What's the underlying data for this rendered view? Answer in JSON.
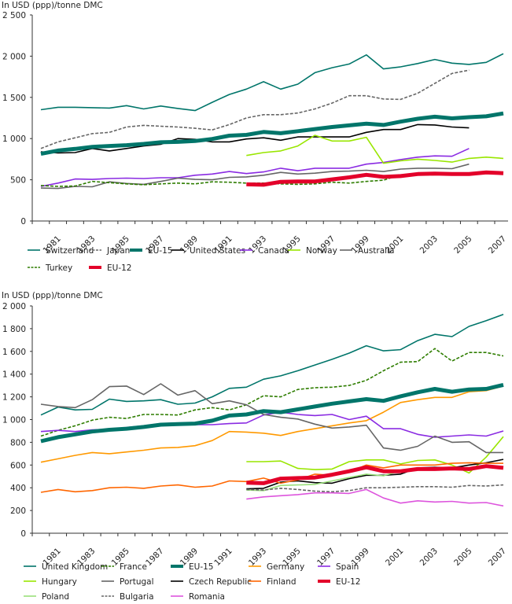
{
  "chart_data": [
    {
      "type": "line",
      "title": "",
      "ylabel": "In USD (ppp)/tonne DMC",
      "xlabel": "",
      "ylim": [
        0,
        2500
      ],
      "yticks": [
        0,
        500,
        1000,
        1500,
        2000,
        2500
      ],
      "ytick_labels": [
        "0",
        "500",
        "1 000",
        "1 500",
        "2 000",
        "2 500"
      ],
      "x": [
        1980,
        1981,
        1982,
        1983,
        1984,
        1985,
        1986,
        1987,
        1988,
        1989,
        1990,
        1991,
        1992,
        1993,
        1994,
        1995,
        1996,
        1997,
        1998,
        1999,
        2000,
        2001,
        2002,
        2003,
        2004,
        2005,
        2006,
        2007
      ],
      "xtick_labels": [
        "1981",
        "1983",
        "1985",
        "1987",
        "1989",
        "1991",
        "1993",
        "1995",
        "1997",
        "1999",
        "2001",
        "2003",
        "2005",
        "2007"
      ],
      "legend_position": "bottom",
      "series": [
        {
          "name": "Switzerland",
          "color": "#00756a",
          "style": "solid",
          "weight": "normal",
          "values": [
            1350,
            1380,
            1380,
            1375,
            1370,
            1400,
            1360,
            1395,
            1365,
            1340,
            1440,
            1535,
            1600,
            1690,
            1600,
            1660,
            1800,
            1860,
            1905,
            2015,
            1845,
            1870,
            1910,
            1960,
            1915,
            1900,
            1925,
            2030
          ]
        },
        {
          "name": "Japan",
          "color": "#666666",
          "style": "dashed",
          "weight": "normal",
          "values": [
            880,
            960,
            1010,
            1060,
            1075,
            1140,
            1160,
            1150,
            1140,
            1125,
            1105,
            1170,
            1250,
            1290,
            1290,
            1310,
            1360,
            1430,
            1520,
            1520,
            1480,
            1475,
            1550,
            1670,
            1790,
            1830,
            null,
            null
          ]
        },
        {
          "name": "EU-15",
          "color": "#00756a",
          "style": "solid",
          "weight": "thick",
          "values": [
            815,
            855,
            875,
            900,
            910,
            920,
            935,
            955,
            960,
            970,
            995,
            1035,
            1045,
            1080,
            1065,
            1090,
            1115,
            1140,
            1160,
            1180,
            1165,
            1205,
            1240,
            1265,
            1245,
            1260,
            1270,
            1305
          ]
        },
        {
          "name": "United States",
          "color": "#000000",
          "style": "solid",
          "weight": "normal",
          "values": [
            840,
            825,
            830,
            880,
            850,
            880,
            910,
            930,
            1000,
            990,
            960,
            960,
            995,
            1010,
            980,
            1020,
            1020,
            1020,
            1020,
            1075,
            1110,
            1110,
            1170,
            1165,
            1140,
            1130,
            null,
            null
          ]
        },
        {
          "name": "Canada",
          "color": "#8a2be2",
          "style": "solid",
          "weight": "normal",
          "values": [
            420,
            460,
            510,
            505,
            515,
            520,
            515,
            525,
            525,
            555,
            570,
            600,
            575,
            595,
            640,
            610,
            640,
            640,
            640,
            690,
            710,
            745,
            775,
            790,
            785,
            880,
            null,
            null
          ]
        },
        {
          "name": "Norway",
          "color": "#99e600",
          "style": "solid",
          "weight": "normal",
          "values": [
            null,
            null,
            null,
            null,
            null,
            null,
            null,
            null,
            null,
            null,
            null,
            null,
            795,
            830,
            850,
            910,
            1040,
            970,
            970,
            1015,
            700,
            730,
            750,
            735,
            715,
            760,
            775,
            760
          ]
        },
        {
          "name": "Australia",
          "color": "#666666",
          "style": "solid",
          "weight": "normal",
          "values": [
            400,
            395,
            420,
            415,
            475,
            455,
            445,
            480,
            520,
            505,
            500,
            530,
            535,
            555,
            590,
            570,
            580,
            600,
            605,
            615,
            600,
            630,
            640,
            640,
            635,
            690,
            null,
            null
          ]
        },
        {
          "name": "Turkey",
          "color": "#2e7d00",
          "style": "dashed",
          "weight": "normal",
          "values": [
            430,
            420,
            425,
            480,
            465,
            450,
            440,
            450,
            460,
            450,
            475,
            470,
            460,
            460,
            450,
            445,
            450,
            470,
            460,
            480,
            495,
            560,
            560,
            560,
            580,
            570,
            590,
            580
          ]
        },
        {
          "name": "EU-12",
          "color": "#e3002a",
          "style": "solid",
          "weight": "thick",
          "values": [
            null,
            null,
            null,
            null,
            null,
            null,
            null,
            null,
            null,
            null,
            null,
            null,
            445,
            440,
            475,
            480,
            480,
            505,
            530,
            560,
            535,
            545,
            570,
            575,
            570,
            570,
            590,
            580
          ]
        }
      ]
    },
    {
      "type": "line",
      "title": "",
      "ylabel": "In USD (ppp)/tonne DMC",
      "xlabel": "",
      "ylim": [
        0,
        2000
      ],
      "yticks": [
        0,
        200,
        400,
        600,
        800,
        1000,
        1200,
        1400,
        1600,
        1800,
        2000
      ],
      "ytick_labels": [
        "0",
        "200",
        "400",
        "600",
        "800",
        "1 000",
        "1 200",
        "1 400",
        "1 600",
        "1 800",
        "2 000"
      ],
      "x": [
        1980,
        1981,
        1982,
        1983,
        1984,
        1985,
        1986,
        1987,
        1988,
        1989,
        1990,
        1991,
        1992,
        1993,
        1994,
        1995,
        1996,
        1997,
        1998,
        1999,
        2000,
        2001,
        2002,
        2003,
        2004,
        2005,
        2006,
        2007
      ],
      "xtick_labels": [
        "1981",
        "1983",
        "1985",
        "1987",
        "1989",
        "1991",
        "1993",
        "1995",
        "1997",
        "1999",
        "2001",
        "2003",
        "2005",
        "2007"
      ],
      "legend_position": "bottom",
      "series": [
        {
          "name": "United Kingdom",
          "color": "#00756a",
          "style": "solid",
          "weight": "normal",
          "values": [
            1040,
            1110,
            1085,
            1090,
            1180,
            1160,
            1165,
            1175,
            1135,
            1145,
            1200,
            1275,
            1285,
            1355,
            1385,
            1430,
            1480,
            1530,
            1585,
            1650,
            1605,
            1615,
            1695,
            1750,
            1730,
            1820,
            1870,
            1925
          ]
        },
        {
          "name": "France",
          "color": "#2e7d00",
          "style": "dashed",
          "weight": "normal",
          "values": [
            855,
            905,
            945,
            995,
            1020,
            1010,
            1045,
            1045,
            1040,
            1085,
            1105,
            1085,
            1130,
            1210,
            1200,
            1265,
            1280,
            1285,
            1300,
            1345,
            1430,
            1505,
            1510,
            1625,
            1515,
            1590,
            1590,
            1560
          ]
        },
        {
          "name": "EU-15",
          "color": "#00756a",
          "style": "solid",
          "weight": "thick",
          "values": [
            810,
            845,
            870,
            895,
            910,
            920,
            935,
            955,
            960,
            965,
            990,
            1035,
            1045,
            1075,
            1065,
            1090,
            1115,
            1140,
            1160,
            1180,
            1165,
            1205,
            1240,
            1270,
            1245,
            1265,
            1270,
            1305
          ]
        },
        {
          "name": "Germany",
          "color": "#ff9900",
          "style": "solid",
          "weight": "normal",
          "values": [
            625,
            655,
            685,
            710,
            700,
            715,
            730,
            750,
            755,
            770,
            815,
            895,
            890,
            880,
            860,
            895,
            920,
            945,
            970,
            990,
            1065,
            1150,
            1175,
            1195,
            1195,
            1245,
            1255,
            1295
          ]
        },
        {
          "name": "Spain",
          "color": "#8a2be2",
          "style": "solid",
          "weight": "normal",
          "values": [
            895,
            905,
            895,
            910,
            915,
            930,
            945,
            965,
            970,
            955,
            955,
            965,
            970,
            1040,
            1065,
            1045,
            1035,
            1045,
            1000,
            1030,
            920,
            920,
            870,
            845,
            855,
            865,
            855,
            900
          ]
        },
        {
          "name": "Hungary",
          "color": "#99e600",
          "style": "solid",
          "weight": "normal",
          "values": [
            null,
            null,
            null,
            null,
            null,
            null,
            null,
            null,
            null,
            null,
            null,
            null,
            630,
            630,
            635,
            570,
            560,
            565,
            630,
            645,
            645,
            610,
            640,
            645,
            600,
            530,
            670,
            850
          ]
        },
        {
          "name": "Portugal",
          "color": "#666666",
          "style": "solid",
          "weight": "normal",
          "values": [
            1135,
            1115,
            1105,
            1175,
            1290,
            1295,
            1220,
            1315,
            1215,
            1255,
            1140,
            1165,
            1130,
            1045,
            1020,
            1005,
            960,
            925,
            935,
            950,
            750,
            730,
            765,
            855,
            800,
            805,
            710,
            710
          ]
        },
        {
          "name": "Czech Republic",
          "color": "#000000",
          "style": "solid",
          "weight": "normal",
          "values": [
            null,
            null,
            null,
            null,
            null,
            null,
            null,
            null,
            null,
            null,
            null,
            null,
            390,
            395,
            450,
            460,
            445,
            440,
            480,
            510,
            510,
            520,
            575,
            580,
            575,
            600,
            620,
            650
          ]
        },
        {
          "name": "Finland",
          "color": "#ff6600",
          "style": "solid",
          "weight": "normal",
          "values": [
            360,
            385,
            365,
            375,
            400,
            405,
            395,
            415,
            425,
            405,
            415,
            460,
            455,
            485,
            440,
            470,
            520,
            510,
            540,
            600,
            575,
            600,
            600,
            600,
            615,
            620,
            615,
            615
          ]
        },
        {
          "name": "EU-12",
          "color": "#e3002a",
          "style": "solid",
          "weight": "thick",
          "values": [
            null,
            null,
            null,
            null,
            null,
            null,
            null,
            null,
            null,
            null,
            null,
            null,
            445,
            440,
            480,
            485,
            490,
            515,
            545,
            580,
            545,
            545,
            565,
            565,
            570,
            565,
            590,
            575
          ]
        },
        {
          "name": "Poland",
          "color": "#99e07a",
          "style": "solid",
          "weight": "normal",
          "values": [
            null,
            null,
            null,
            null,
            null,
            null,
            null,
            null,
            null,
            null,
            null,
            null,
            380,
            375,
            420,
            425,
            430,
            460,
            490,
            520,
            505,
            550,
            565,
            575,
            575,
            575,
            595,
            585
          ]
        },
        {
          "name": "Bulgaria",
          "color": "#666666",
          "style": "dashed",
          "weight": "normal",
          "values": [
            null,
            null,
            null,
            null,
            null,
            null,
            null,
            null,
            null,
            null,
            null,
            null,
            385,
            380,
            395,
            385,
            370,
            365,
            375,
            400,
            400,
            405,
            410,
            410,
            405,
            420,
            415,
            425
          ]
        },
        {
          "name": "Romania",
          "color": "#dd55dd",
          "style": "solid",
          "weight": "normal",
          "values": [
            null,
            null,
            null,
            null,
            null,
            null,
            null,
            null,
            null,
            null,
            null,
            null,
            300,
            320,
            330,
            340,
            355,
            355,
            350,
            385,
            310,
            265,
            285,
            275,
            280,
            265,
            270,
            240
          ]
        }
      ]
    }
  ]
}
